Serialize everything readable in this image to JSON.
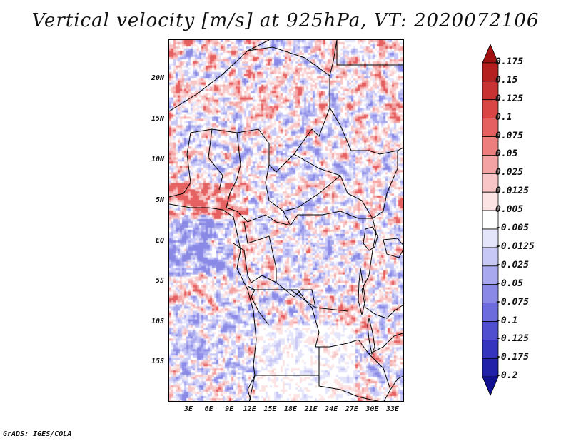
{
  "title": "Vertical velocity [m/s] at 925hPa, VT: 2020072106",
  "footer": "GrADS: IGES/COLA",
  "lat_labels": [
    "20N",
    "15N",
    "10N",
    "5N",
    "EQ",
    "5S",
    "10S",
    "15S"
  ],
  "lon_labels": [
    "3E",
    "6E",
    "9E",
    "12E",
    "15E",
    "18E",
    "21E",
    "24E",
    "27E",
    "30E",
    "33E"
  ],
  "colorbar": {
    "labels": [
      "0.175",
      "0.15",
      "0.125",
      "0.1",
      "0.075",
      "0.05",
      "0.025",
      "0.0125",
      "0.005",
      "-0.005",
      "-0.0125",
      "-0.025",
      "-0.05",
      "-0.075",
      "-0.1",
      "-0.125",
      "-0.175",
      "-0.2"
    ],
    "colors": [
      "#a01010",
      "#b42020",
      "#c83232",
      "#d94545",
      "#e56060",
      "#ec7e7e",
      "#f3a3a3",
      "#f8c6c6",
      "#fce4e4",
      "#ffffff",
      "#e4e4fb",
      "#c8c8f6",
      "#a8a8ef",
      "#8a8ae6",
      "#6c6cdc",
      "#4f4fd0",
      "#3434bf",
      "#2020a8",
      "#101090"
    ]
  },
  "map_data": {
    "variable": "Vertical velocity",
    "units": "m/s",
    "level": "925hPa",
    "valid_time": "2020072106",
    "lon_range": [
      0,
      35
    ],
    "lat_range": [
      -20,
      25
    ]
  }
}
